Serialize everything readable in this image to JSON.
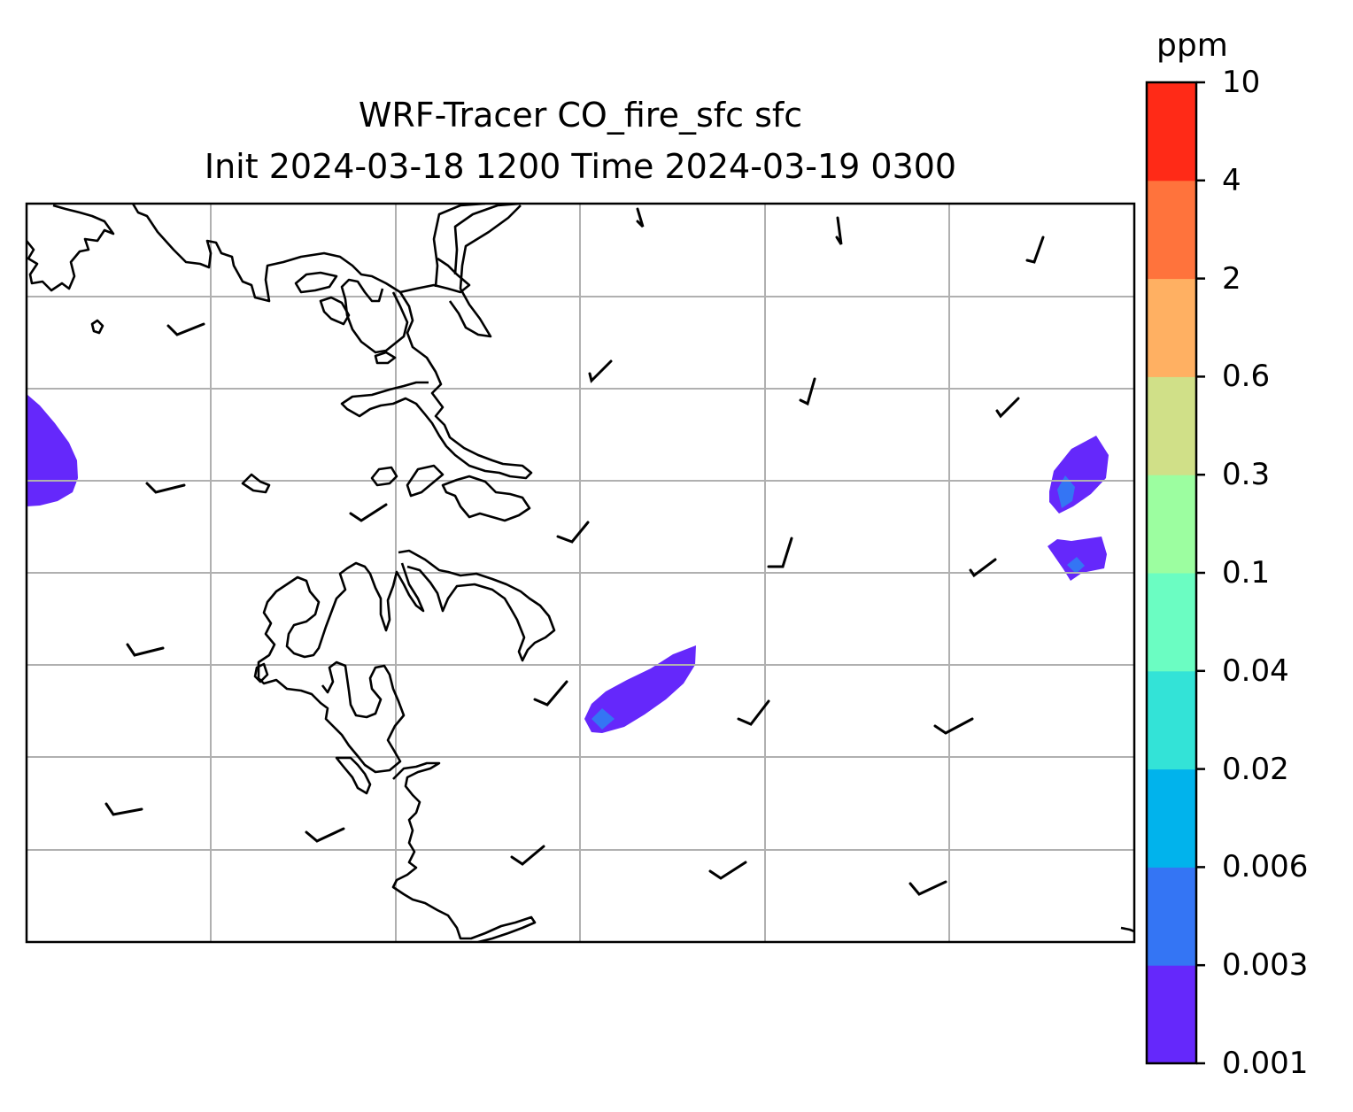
{
  "title": {
    "line1": "WRF-Tracer CO_fire_sfc sfc",
    "line2": "Init 2024-03-18 1200 Time 2024-03-19 0300"
  },
  "colorbar": {
    "unit": "ppm",
    "levels": [
      "0.001",
      "0.003",
      "0.006",
      "0.02",
      "0.04",
      "0.1",
      "0.3",
      "0.6",
      "2",
      "4",
      "10"
    ],
    "colors": [
      "#6528fb",
      "#3475f4",
      "#01b3ec",
      "#33e3d7",
      "#6bfdc2",
      "#9cfea0",
      "#d0e088",
      "#ffb062",
      "#ff733c",
      "#ff2a17"
    ]
  },
  "map": {
    "gridlines": true,
    "contour_colors": {
      "lowest": "#6528fb",
      "second": "#3475f4"
    },
    "coastline_color": "#000000",
    "grid_color": "#b0b0b0"
  }
}
